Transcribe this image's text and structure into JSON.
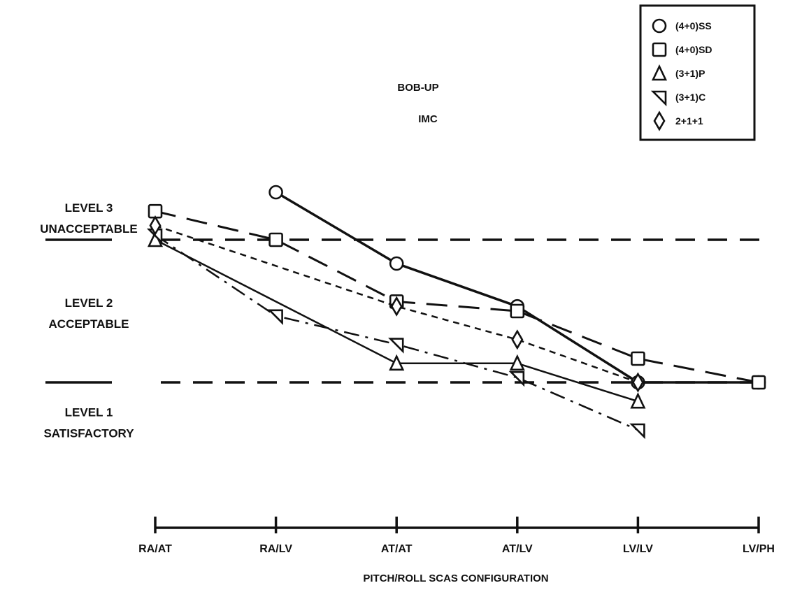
{
  "chart_data": {
    "type": "line",
    "title": "BOB-UP",
    "subtitle": "IMC",
    "xlabel": "PITCH/ROLL SCAS CONFIGURATION",
    "ylabel": "",
    "categories": [
      "RA/AT",
      "RA/LV",
      "AT/AT",
      "AT/LV",
      "LV/LV",
      "LV/PH"
    ],
    "ylim": [
      0.5,
      3.9
    ],
    "grid": false,
    "legend_position": "top-right",
    "levels": [
      {
        "line1": "LEVEL 3",
        "line2": "UNACCEPTABLE",
        "y": 3.25
      },
      {
        "line1": "LEVEL 2",
        "line2": "ACCEPTABLE",
        "y": 2.25
      },
      {
        "line1": "LEVEL 1",
        "line2": "SATISFACTORY",
        "y": 1.1
      }
    ],
    "boundaries": [
      3.0,
      1.5
    ],
    "series": [
      {
        "name": "(4+0)SS",
        "marker": "circle",
        "dash": "solid",
        "stroke_width": 3.5,
        "values": [
          null,
          3.5,
          2.75,
          2.3,
          1.5,
          1.5
        ]
      },
      {
        "name": "(4+0)SD",
        "marker": "square",
        "dash": "long",
        "stroke_width": 3,
        "values": [
          3.3,
          3.0,
          2.35,
          2.25,
          1.75,
          1.5
        ]
      },
      {
        "name": "(3+1)P",
        "marker": "triangle-up",
        "dash": "solid",
        "stroke_width": 2.5,
        "values": [
          3.0,
          null,
          1.7,
          1.7,
          1.3,
          null
        ]
      },
      {
        "name": "(3+1)C",
        "marker": "triangle-left",
        "dash": "dashdot",
        "stroke_width": 2.5,
        "values": [
          3.05,
          2.2,
          1.9,
          1.55,
          1.0,
          null
        ]
      },
      {
        "name": "2+1+1",
        "marker": "diamond",
        "dash": "short",
        "stroke_width": 2.5,
        "values": [
          3.15,
          null,
          2.3,
          1.95,
          1.5,
          null
        ]
      }
    ]
  }
}
